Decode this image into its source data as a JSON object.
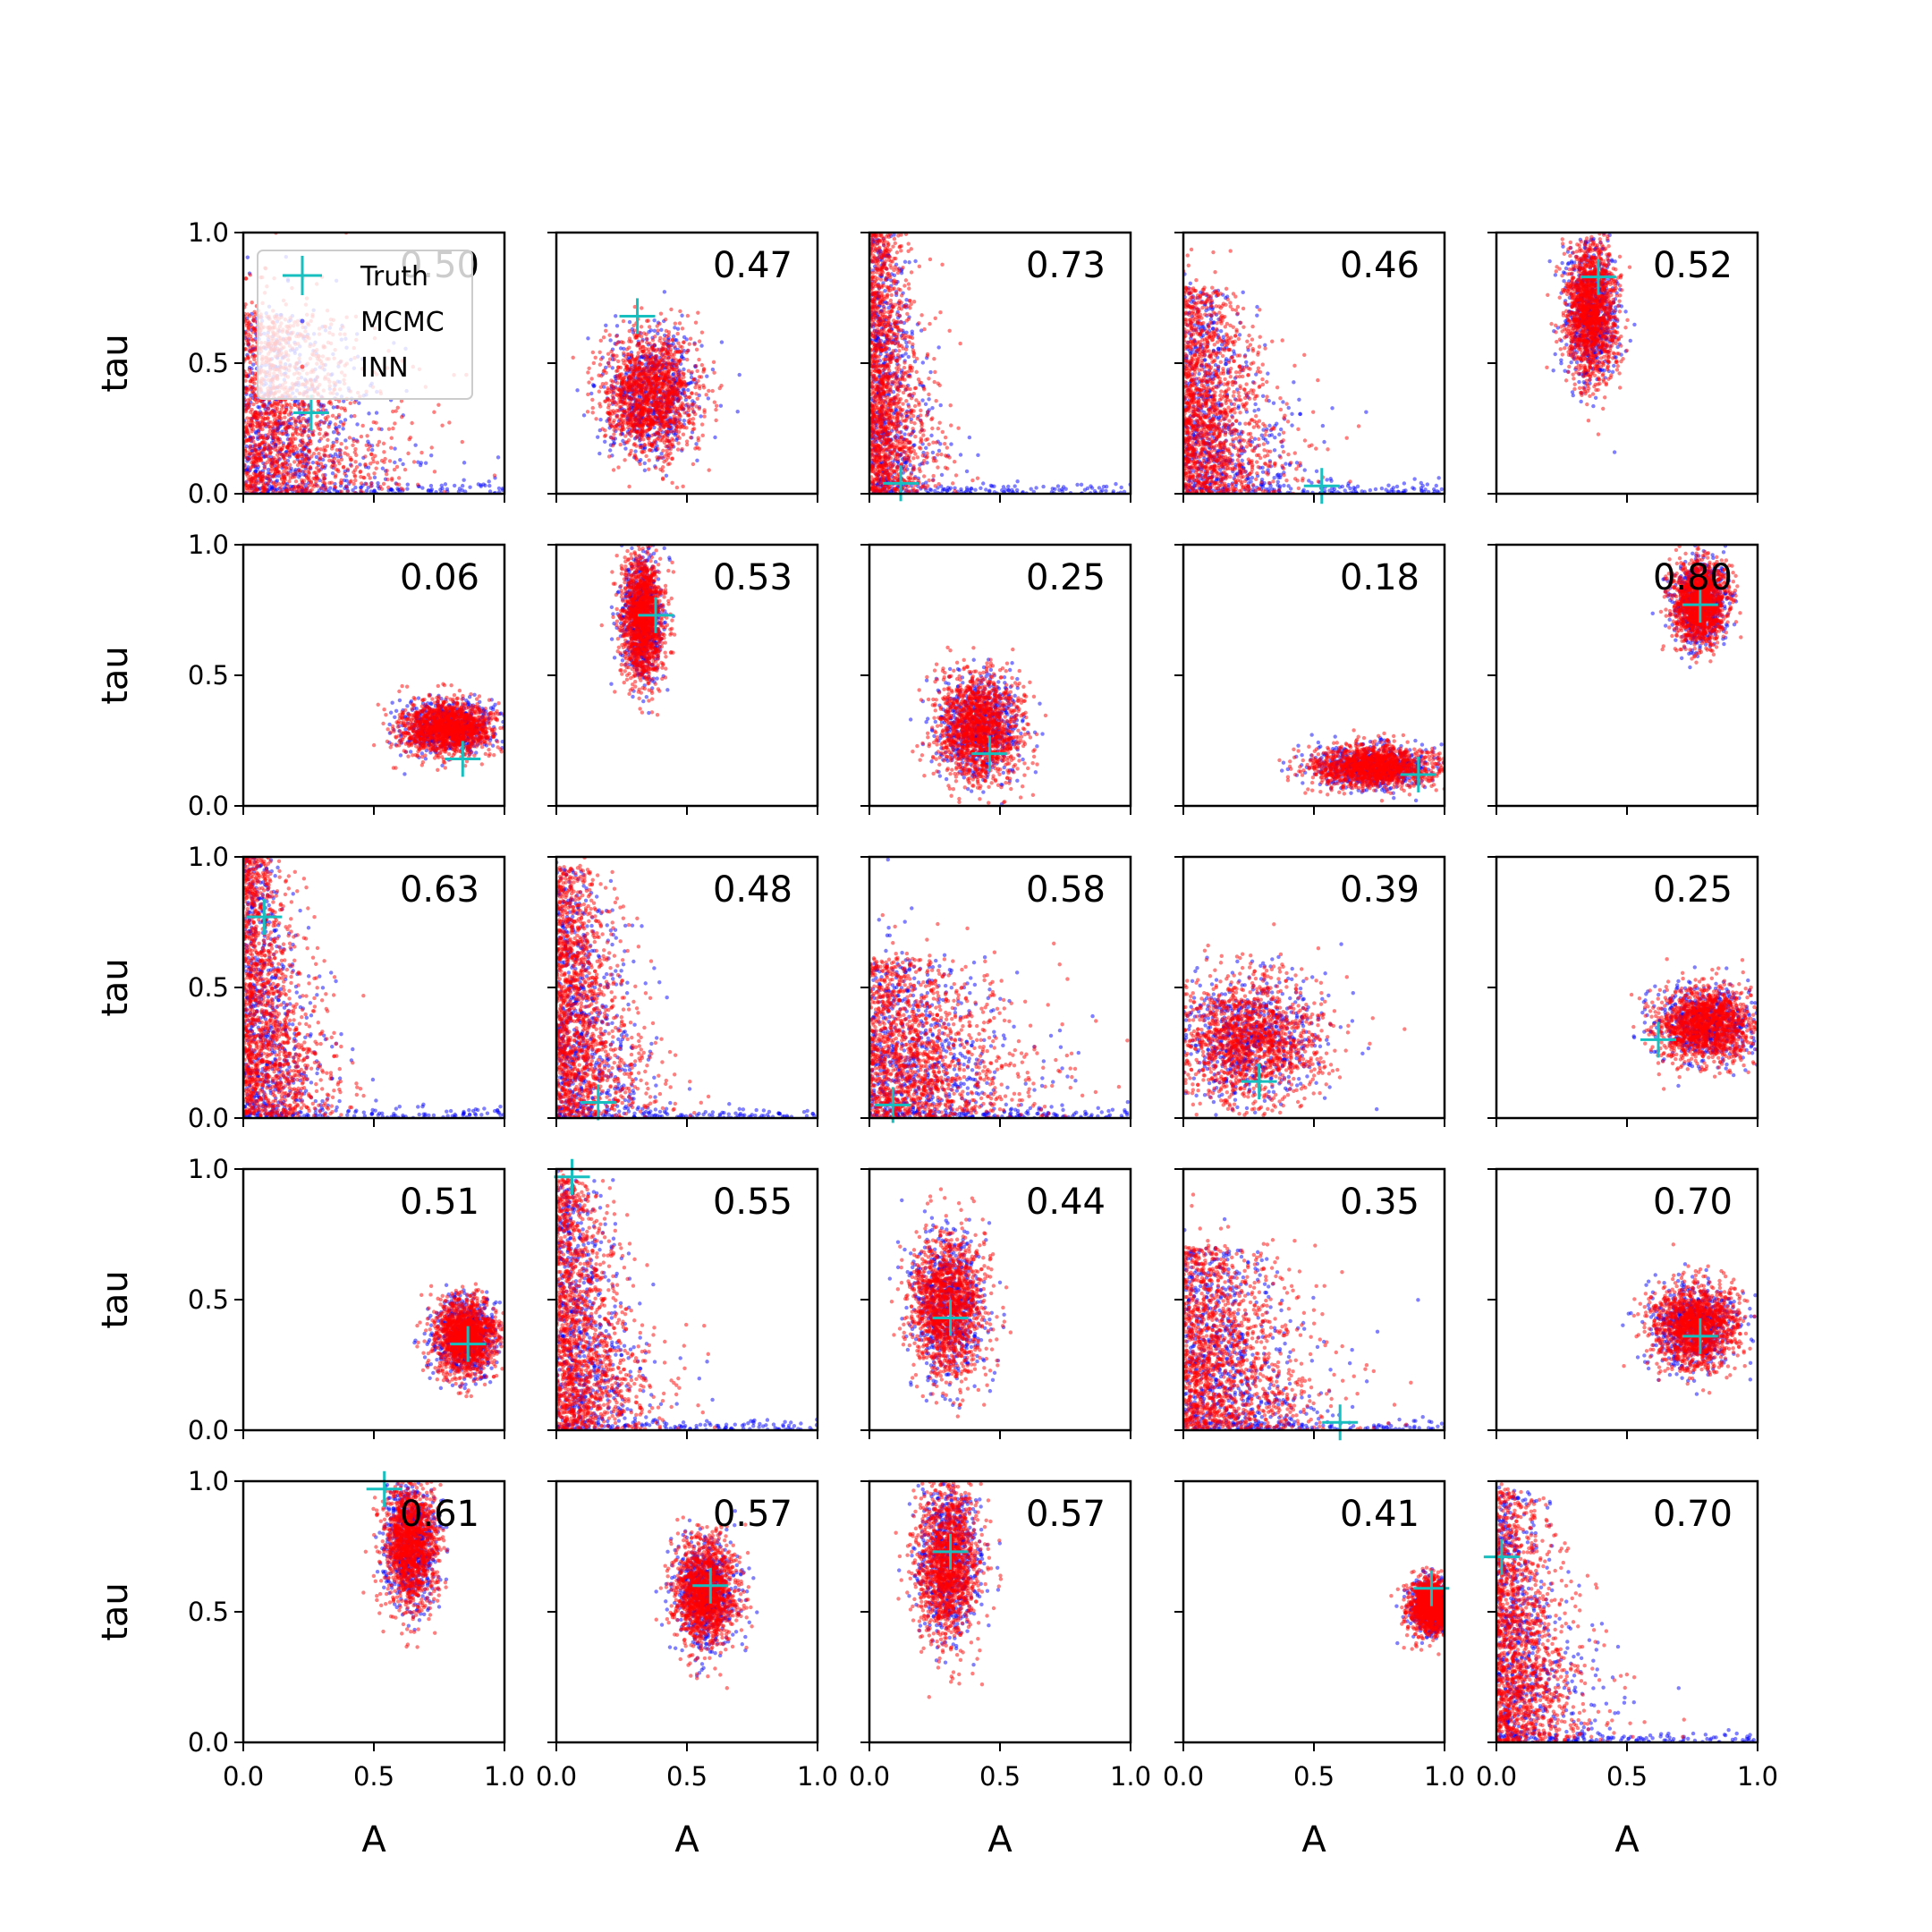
{
  "legend": {
    "placement": "upper-left of first panel",
    "entries": [
      {
        "label": "Truth",
        "marker": "plus",
        "color": "#17bfbf"
      },
      {
        "label": "MCMC",
        "marker": "dot",
        "color": "#0000ff"
      },
      {
        "label": "INN",
        "marker": "dot",
        "color": "#ff0000"
      }
    ]
  },
  "colors": {
    "truth": "#17bfbf",
    "mcmc": "#0000ff",
    "inn": "#ff0000"
  },
  "chart_data": {
    "type": "scatter",
    "layout": {
      "rows": 5,
      "cols": 5
    },
    "xlabel": "A",
    "ylabel": "tau",
    "xlim": [
      0.0,
      1.0
    ],
    "ylim": [
      0.0,
      1.0
    ],
    "xticks": [
      "0.0",
      "0.5",
      "1.0"
    ],
    "yticks": [
      "0.0",
      "0.5",
      "1.0"
    ],
    "grid": false,
    "series": [
      {
        "name": "MCMC",
        "color": "#0000ff",
        "marker": "dot",
        "alpha": 0.5
      },
      {
        "name": "INN",
        "color": "#ff0000",
        "marker": "dot",
        "alpha": 0.5
      },
      {
        "name": "Truth",
        "color": "#17bfbf",
        "marker": "plus"
      }
    ],
    "panels": [
      {
        "row": 0,
        "col": 0,
        "label": "0.50",
        "truth": {
          "A": 0.26,
          "tau": 0.31
        },
        "dist": {
          "shape": "corner",
          "cx": 0.14,
          "cy": 0.25,
          "sx": 0.18,
          "sy": 0.22
        }
      },
      {
        "row": 0,
        "col": 1,
        "label": "0.47",
        "truth": {
          "A": 0.31,
          "tau": 0.68
        },
        "dist": {
          "shape": "blob",
          "cx": 0.36,
          "cy": 0.38,
          "sx": 0.09,
          "sy": 0.12
        }
      },
      {
        "row": 0,
        "col": 2,
        "label": "0.73",
        "truth": {
          "A": 0.12,
          "tau": 0.04
        },
        "dist": {
          "shape": "corner",
          "cx": 0.08,
          "cy": 0.45,
          "sx": 0.08,
          "sy": 0.3
        }
      },
      {
        "row": 0,
        "col": 3,
        "label": "0.46",
        "truth": {
          "A": 0.53,
          "tau": 0.03
        },
        "dist": {
          "shape": "corner",
          "cx": 0.12,
          "cy": 0.35,
          "sx": 0.12,
          "sy": 0.22
        }
      },
      {
        "row": 0,
        "col": 4,
        "label": "0.52",
        "truth": {
          "A": 0.39,
          "tau": 0.83
        },
        "dist": {
          "shape": "blob",
          "cx": 0.36,
          "cy": 0.7,
          "sx": 0.05,
          "sy": 0.13
        }
      },
      {
        "row": 1,
        "col": 0,
        "label": "0.06",
        "truth": {
          "A": 0.84,
          "tau": 0.18
        },
        "dist": {
          "shape": "blob",
          "cx": 0.78,
          "cy": 0.3,
          "sx": 0.09,
          "sy": 0.05
        }
      },
      {
        "row": 1,
        "col": 1,
        "label": "0.53",
        "truth": {
          "A": 0.38,
          "tau": 0.73
        },
        "dist": {
          "shape": "blob",
          "cx": 0.33,
          "cy": 0.72,
          "sx": 0.04,
          "sy": 0.12
        }
      },
      {
        "row": 1,
        "col": 2,
        "label": "0.25",
        "truth": {
          "A": 0.46,
          "tau": 0.2
        },
        "dist": {
          "shape": "blob",
          "cx": 0.42,
          "cy": 0.3,
          "sx": 0.08,
          "sy": 0.1
        }
      },
      {
        "row": 1,
        "col": 3,
        "label": "0.18",
        "truth": {
          "A": 0.9,
          "tau": 0.12
        },
        "dist": {
          "shape": "blob",
          "cx": 0.73,
          "cy": 0.15,
          "sx": 0.12,
          "sy": 0.04
        }
      },
      {
        "row": 1,
        "col": 4,
        "label": "0.80",
        "truth": {
          "A": 0.78,
          "tau": 0.77
        },
        "dist": {
          "shape": "blob",
          "cx": 0.78,
          "cy": 0.78,
          "sx": 0.05,
          "sy": 0.08
        }
      },
      {
        "row": 2,
        "col": 0,
        "label": "0.63",
        "truth": {
          "A": 0.08,
          "tau": 0.77
        },
        "dist": {
          "shape": "corner",
          "cx": 0.1,
          "cy": 0.45,
          "sx": 0.1,
          "sy": 0.28
        }
      },
      {
        "row": 2,
        "col": 1,
        "label": "0.48",
        "truth": {
          "A": 0.16,
          "tau": 0.06
        },
        "dist": {
          "shape": "corner",
          "cx": 0.1,
          "cy": 0.4,
          "sx": 0.11,
          "sy": 0.28
        }
      },
      {
        "row": 2,
        "col": 2,
        "label": "0.58",
        "truth": {
          "A": 0.09,
          "tau": 0.05
        },
        "dist": {
          "shape": "corner",
          "cx": 0.16,
          "cy": 0.25,
          "sx": 0.18,
          "sy": 0.18
        }
      },
      {
        "row": 2,
        "col": 3,
        "label": "0.39",
        "truth": {
          "A": 0.29,
          "tau": 0.14
        },
        "dist": {
          "shape": "blob",
          "cx": 0.25,
          "cy": 0.3,
          "sx": 0.14,
          "sy": 0.12
        }
      },
      {
        "row": 2,
        "col": 4,
        "label": "0.25",
        "truth": {
          "A": 0.62,
          "tau": 0.3
        },
        "dist": {
          "shape": "blob",
          "cx": 0.8,
          "cy": 0.36,
          "sx": 0.09,
          "sy": 0.07
        }
      },
      {
        "row": 3,
        "col": 0,
        "label": "0.51",
        "truth": {
          "A": 0.86,
          "tau": 0.33
        },
        "dist": {
          "shape": "blob",
          "cx": 0.85,
          "cy": 0.36,
          "sx": 0.06,
          "sy": 0.07
        }
      },
      {
        "row": 3,
        "col": 1,
        "label": "0.55",
        "truth": {
          "A": 0.06,
          "tau": 0.97
        },
        "dist": {
          "shape": "corner",
          "cx": 0.1,
          "cy": 0.4,
          "sx": 0.11,
          "sy": 0.28
        }
      },
      {
        "row": 3,
        "col": 2,
        "label": "0.44",
        "truth": {
          "A": 0.31,
          "tau": 0.43
        },
        "dist": {
          "shape": "blob",
          "cx": 0.3,
          "cy": 0.48,
          "sx": 0.07,
          "sy": 0.14
        }
      },
      {
        "row": 3,
        "col": 3,
        "label": "0.35",
        "truth": {
          "A": 0.6,
          "tau": 0.03
        },
        "dist": {
          "shape": "corner",
          "cx": 0.16,
          "cy": 0.3,
          "sx": 0.16,
          "sy": 0.2
        }
      },
      {
        "row": 3,
        "col": 4,
        "label": "0.70",
        "truth": {
          "A": 0.78,
          "tau": 0.36
        },
        "dist": {
          "shape": "blob",
          "cx": 0.76,
          "cy": 0.4,
          "sx": 0.08,
          "sy": 0.08
        }
      },
      {
        "row": 4,
        "col": 0,
        "label": "0.61",
        "truth": {
          "A": 0.54,
          "tau": 0.97
        },
        "dist": {
          "shape": "blob",
          "cx": 0.64,
          "cy": 0.76,
          "sx": 0.05,
          "sy": 0.12
        }
      },
      {
        "row": 4,
        "col": 1,
        "label": "0.57",
        "truth": {
          "A": 0.59,
          "tau": 0.6
        },
        "dist": {
          "shape": "blob",
          "cx": 0.57,
          "cy": 0.57,
          "sx": 0.06,
          "sy": 0.1
        }
      },
      {
        "row": 4,
        "col": 2,
        "label": "0.57",
        "truth": {
          "A": 0.31,
          "tau": 0.73
        },
        "dist": {
          "shape": "blob",
          "cx": 0.3,
          "cy": 0.7,
          "sx": 0.06,
          "sy": 0.15
        }
      },
      {
        "row": 4,
        "col": 3,
        "label": "0.41",
        "truth": {
          "A": 0.95,
          "tau": 0.59
        },
        "dist": {
          "shape": "blob",
          "cx": 0.95,
          "cy": 0.52,
          "sx": 0.04,
          "sy": 0.05
        }
      },
      {
        "row": 4,
        "col": 4,
        "label": "0.70",
        "truth": {
          "A": 0.02,
          "tau": 0.71
        },
        "dist": {
          "shape": "corner",
          "cx": 0.1,
          "cy": 0.4,
          "sx": 0.11,
          "sy": 0.28
        }
      }
    ]
  }
}
